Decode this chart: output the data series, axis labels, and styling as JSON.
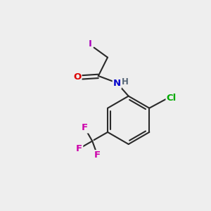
{
  "background_color": "#eeeeee",
  "bond_color": "#2a2a2a",
  "I_color": "#aa00bb",
  "O_color": "#dd0000",
  "N_color": "#0000cc",
  "Cl_color": "#00aa00",
  "F_color": "#cc00aa",
  "figsize": [
    3.0,
    3.0
  ],
  "dpi": 100,
  "xlim": [
    0,
    10
  ],
  "ylim": [
    0,
    10
  ]
}
